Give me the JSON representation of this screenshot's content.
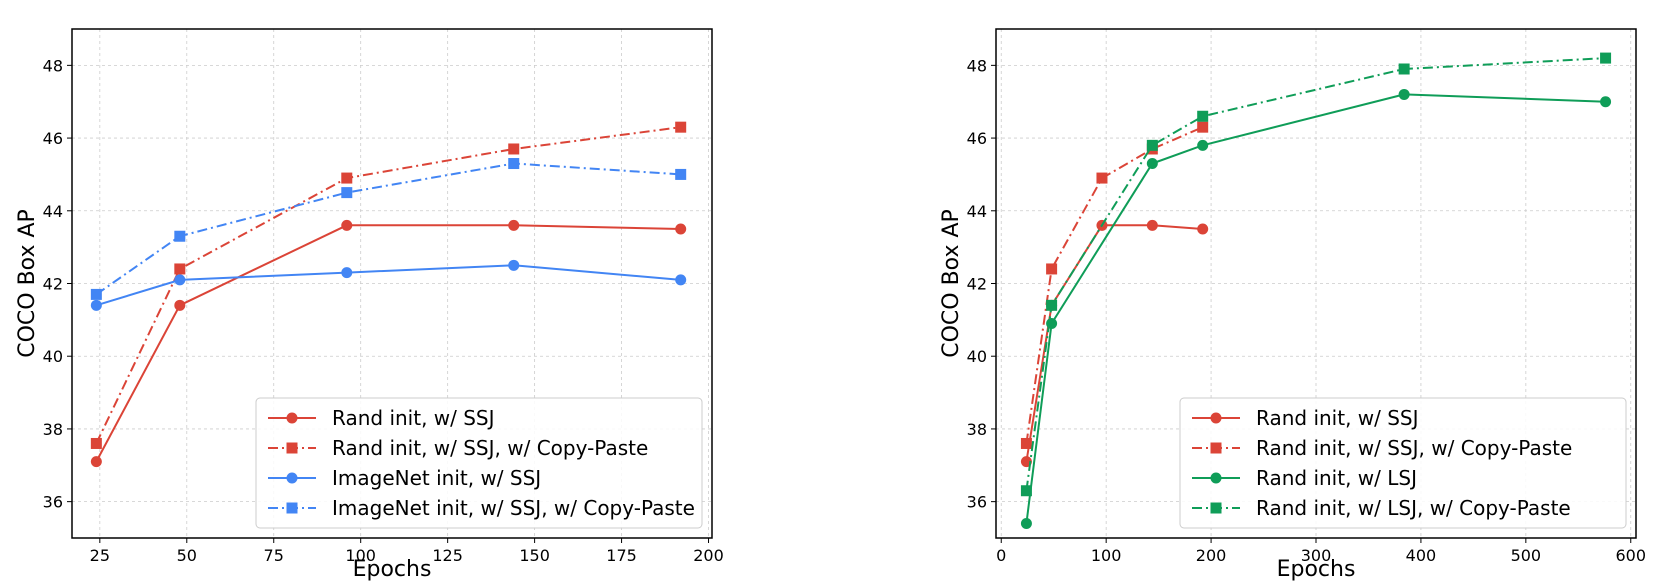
{
  "chart_data": [
    {
      "type": "line",
      "title": "",
      "xlabel": "Epochs",
      "ylabel": "COCO Box AP",
      "xlim": [
        17,
        201
      ],
      "ylim": [
        35,
        49
      ],
      "xticks": [
        25,
        50,
        75,
        100,
        125,
        150,
        175,
        200
      ],
      "yticks": [
        36,
        38,
        40,
        42,
        44,
        46,
        48
      ],
      "grid": true,
      "legend_position": "lower-right",
      "series": [
        {
          "name": "Rand init, w/ SSJ",
          "color": "#db4437",
          "linestyle": "solid",
          "marker": "circle",
          "x": [
            24,
            48,
            96,
            144,
            192
          ],
          "y": [
            37.1,
            41.4,
            43.6,
            43.6,
            43.5
          ]
        },
        {
          "name": "Rand init, w/ SSJ, w/ Copy-Paste",
          "color": "#db4437",
          "linestyle": "dashdot",
          "marker": "square",
          "x": [
            24,
            48,
            96,
            144,
            192
          ],
          "y": [
            37.6,
            42.4,
            44.9,
            45.7,
            46.3
          ]
        },
        {
          "name": "ImageNet init, w/ SSJ",
          "color": "#4285f4",
          "linestyle": "solid",
          "marker": "circle",
          "x": [
            24,
            48,
            96,
            144,
            192
          ],
          "y": [
            41.4,
            42.1,
            42.3,
            42.5,
            42.1
          ]
        },
        {
          "name": "ImageNet init, w/ SSJ, w/ Copy-Paste",
          "color": "#4285f4",
          "linestyle": "dashdot",
          "marker": "square",
          "x": [
            24,
            48,
            96,
            144,
            192
          ],
          "y": [
            41.7,
            43.3,
            44.5,
            45.3,
            45.0
          ]
        }
      ]
    },
    {
      "type": "line",
      "title": "",
      "xlabel": "Epochs",
      "ylabel": "COCO Box AP",
      "xlim": [
        -5,
        605
      ],
      "ylim": [
        35,
        49
      ],
      "xticks": [
        0,
        100,
        200,
        300,
        400,
        500,
        600
      ],
      "yticks": [
        36,
        38,
        40,
        42,
        44,
        46,
        48
      ],
      "grid": true,
      "legend_position": "lower-right",
      "series": [
        {
          "name": "Rand init, w/ SSJ",
          "color": "#db4437",
          "linestyle": "solid",
          "marker": "circle",
          "x": [
            24,
            48,
            96,
            144,
            192
          ],
          "y": [
            37.1,
            41.4,
            43.6,
            43.6,
            43.5
          ]
        },
        {
          "name": "Rand init, w/ SSJ, w/ Copy-Paste",
          "color": "#db4437",
          "linestyle": "dashdot",
          "marker": "square",
          "x": [
            24,
            48,
            96,
            144,
            192
          ],
          "y": [
            37.6,
            42.4,
            44.9,
            45.7,
            46.3
          ]
        },
        {
          "name": "Rand init, w/ LSJ",
          "color": "#0f9d58",
          "linestyle": "solid",
          "marker": "circle",
          "x": [
            24,
            48,
            144,
            192,
            384,
            576
          ],
          "y": [
            35.4,
            40.9,
            45.3,
            45.8,
            47.2,
            47.0
          ]
        },
        {
          "name": "Rand init, w/ LSJ, w/ Copy-Paste",
          "color": "#0f9d58",
          "linestyle": "dashdot",
          "marker": "square",
          "x": [
            24,
            48,
            144,
            192,
            384,
            576
          ],
          "y": [
            36.3,
            41.4,
            45.8,
            46.6,
            47.9,
            48.2
          ]
        }
      ]
    }
  ]
}
